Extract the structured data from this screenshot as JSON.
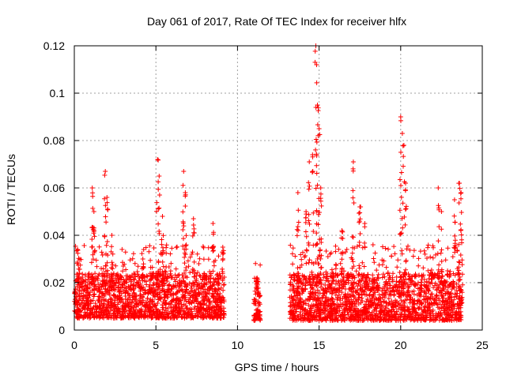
{
  "chart_data": {
    "type": "scatter",
    "title": "Day 061 of 2017, Rate Of TEC Index for receiver hlfx",
    "xlabel": "GPS time / hours",
    "ylabel": "ROTI / TECUs",
    "xlim": [
      0,
      25
    ],
    "ylim": [
      0,
      0.12
    ],
    "x_ticks": [
      0,
      5,
      10,
      15,
      20,
      25
    ],
    "x_tick_labels": [
      "0",
      "5",
      "10",
      "15",
      "20",
      "25"
    ],
    "y_ticks": [
      0,
      0.02,
      0.04,
      0.06,
      0.08,
      0.1,
      0.12
    ],
    "y_tick_labels": [
      "0",
      "0.02",
      "0.04",
      "0.06",
      "0.08",
      "0.1",
      "0.12"
    ],
    "grid": true,
    "marker": "+",
    "series": [
      {
        "name": "ROTI",
        "color": "#ff0000",
        "segments": [
          {
            "x_start": 0.0,
            "x_end": 9.2,
            "y_typical_low": 0.005,
            "y_typical_high": 0.024
          },
          {
            "x_start": 11.0,
            "x_end": 11.4,
            "y_typical_low": 0.004,
            "y_typical_high": 0.018
          },
          {
            "x_start": 13.2,
            "x_end": 23.8,
            "y_typical_low": 0.004,
            "y_typical_high": 0.024
          }
        ],
        "peaks": [
          {
            "x": 0.2,
            "y": 0.034
          },
          {
            "x": 1.1,
            "y": 0.06
          },
          {
            "x": 1.2,
            "y": 0.05
          },
          {
            "x": 1.9,
            "y": 0.067
          },
          {
            "x": 2.0,
            "y": 0.056
          },
          {
            "x": 2.3,
            "y": 0.04
          },
          {
            "x": 4.2,
            "y": 0.03
          },
          {
            "x": 5.1,
            "y": 0.072
          },
          {
            "x": 5.2,
            "y": 0.065
          },
          {
            "x": 5.4,
            "y": 0.048
          },
          {
            "x": 6.7,
            "y": 0.067
          },
          {
            "x": 6.8,
            "y": 0.058
          },
          {
            "x": 7.3,
            "y": 0.047
          },
          {
            "x": 8.5,
            "y": 0.045
          },
          {
            "x": 9.1,
            "y": 0.035
          },
          {
            "x": 11.2,
            "y": 0.022
          },
          {
            "x": 13.7,
            "y": 0.058
          },
          {
            "x": 14.2,
            "y": 0.05
          },
          {
            "x": 14.4,
            "y": 0.071
          },
          {
            "x": 14.6,
            "y": 0.074
          },
          {
            "x": 14.8,
            "y": 0.12
          },
          {
            "x": 14.85,
            "y": 0.112
          },
          {
            "x": 14.9,
            "y": 0.095
          },
          {
            "x": 15.0,
            "y": 0.085
          },
          {
            "x": 15.1,
            "y": 0.06
          },
          {
            "x": 16.4,
            "y": 0.042
          },
          {
            "x": 17.1,
            "y": 0.071
          },
          {
            "x": 17.5,
            "y": 0.052
          },
          {
            "x": 17.8,
            "y": 0.045
          },
          {
            "x": 20.0,
            "y": 0.09
          },
          {
            "x": 20.1,
            "y": 0.083
          },
          {
            "x": 20.2,
            "y": 0.078
          },
          {
            "x": 20.3,
            "y": 0.062
          },
          {
            "x": 22.3,
            "y": 0.06
          },
          {
            "x": 22.5,
            "y": 0.05
          },
          {
            "x": 23.3,
            "y": 0.055
          },
          {
            "x": 23.6,
            "y": 0.062
          },
          {
            "x": 23.7,
            "y": 0.058
          }
        ]
      }
    ]
  }
}
